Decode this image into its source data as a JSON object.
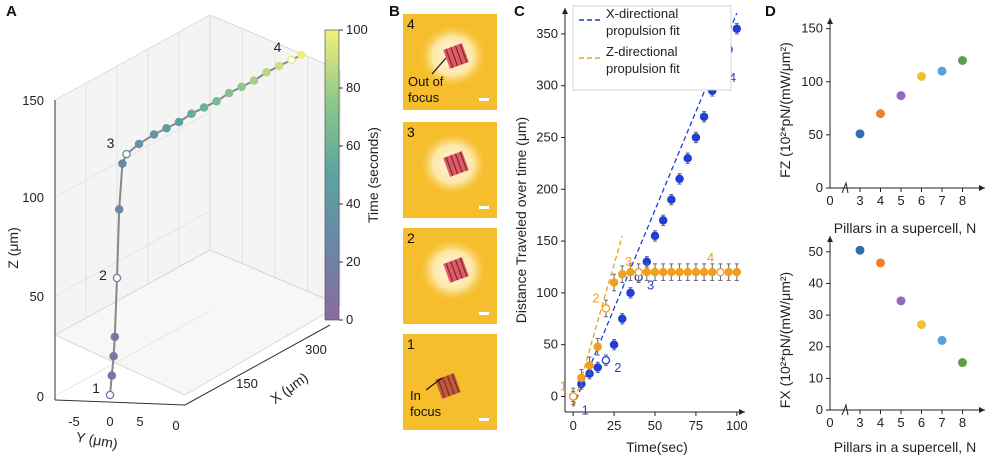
{
  "panels": {
    "a": "A",
    "b": "B",
    "c": "C",
    "d": "D"
  },
  "colors": {
    "blue": "#1f3fd6",
    "orange": "#f0a01e",
    "gray": "#555555"
  },
  "chart_data": [
    {
      "id": "A",
      "type": "scatter",
      "description_axes": "3D trajectory",
      "xlabel": "X (μm)",
      "ylabel": "Y (μm)",
      "zlabel": "Z (μm)",
      "colorbar_label": "Time (seconds)",
      "colorbar_ticks": [
        "0",
        "20",
        "40",
        "60",
        "80",
        "100"
      ],
      "z_ticks": [
        "0",
        "50",
        "100",
        "150"
      ],
      "x_ticks": [
        "0",
        "150",
        "300"
      ],
      "y_ticks": [
        "-5",
        "0",
        "5"
      ],
      "markers": [
        "1",
        "2",
        "3",
        "4"
      ],
      "points": [
        {
          "t": 0,
          "x": 0,
          "y": 0,
          "z": 0
        },
        {
          "t": 4,
          "x": 0,
          "y": 0.3,
          "z": 10
        },
        {
          "t": 8,
          "x": 0,
          "y": 0.6,
          "z": 20
        },
        {
          "t": 12,
          "x": 0,
          "y": 0.8,
          "z": 30
        },
        {
          "t": 20,
          "x": 2,
          "y": 1,
          "z": 60
        },
        {
          "t": 24,
          "x": 4,
          "y": 1.2,
          "z": 95
        },
        {
          "t": 28,
          "x": 8,
          "y": 1.4,
          "z": 118
        },
        {
          "t": 30,
          "x": 15,
          "y": 1.5,
          "z": 122
        },
        {
          "t": 35,
          "x": 40,
          "y": 1.5,
          "z": 124
        },
        {
          "t": 40,
          "x": 70,
          "y": 1.5,
          "z": 125
        },
        {
          "t": 45,
          "x": 95,
          "y": 1.5,
          "z": 125
        },
        {
          "t": 50,
          "x": 120,
          "y": 1.5,
          "z": 125
        },
        {
          "t": 55,
          "x": 145,
          "y": 1.5,
          "z": 126
        },
        {
          "t": 60,
          "x": 170,
          "y": 1.5,
          "z": 126
        },
        {
          "t": 65,
          "x": 195,
          "y": 1.5,
          "z": 126
        },
        {
          "t": 70,
          "x": 220,
          "y": 1.5,
          "z": 127
        },
        {
          "t": 75,
          "x": 245,
          "y": 1.5,
          "z": 127
        },
        {
          "t": 80,
          "x": 270,
          "y": 1.5,
          "z": 127
        },
        {
          "t": 85,
          "x": 295,
          "y": 1.5,
          "z": 128
        },
        {
          "t": 90,
          "x": 320,
          "y": 1.5,
          "z": 128
        },
        {
          "t": 95,
          "x": 345,
          "y": 1.5,
          "z": 128
        },
        {
          "t": 100,
          "x": 365,
          "y": 1.5,
          "z": 128
        }
      ]
    },
    {
      "id": "C",
      "type": "scatter",
      "xlabel": "Time(sec)",
      "ylabel": "Distance Traveled over time (μm)",
      "xlim": [
        -5,
        105
      ],
      "ylim": [
        -15,
        375
      ],
      "x_ticks": [
        0,
        25,
        50,
        75,
        100
      ],
      "y_ticks": [
        0,
        50,
        100,
        150,
        200,
        250,
        300,
        350
      ],
      "legend": [
        "X-directional propulsion fit",
        "Z-directional propulsion fit"
      ],
      "marker_labels_blue": [
        "1",
        "2",
        "3",
        "4"
      ],
      "marker_labels_orange": [
        "1",
        "2",
        "3",
        "4"
      ],
      "series": [
        {
          "name": "X",
          "color": "blue",
          "x": [
            0,
            5,
            10,
            15,
            20,
            25,
            30,
            35,
            40,
            45,
            50,
            55,
            60,
            65,
            70,
            75,
            80,
            85,
            90,
            95,
            100
          ],
          "y": [
            0,
            12,
            22,
            28,
            35,
            50,
            75,
            100,
            115,
            130,
            155,
            170,
            190,
            210,
            230,
            250,
            270,
            295,
            315,
            335,
            355
          ],
          "err": 5
        },
        {
          "name": "Z",
          "color": "orange",
          "x": [
            0,
            5,
            10,
            15,
            20,
            25,
            30,
            35,
            40,
            45,
            50,
            55,
            60,
            65,
            70,
            75,
            80,
            85,
            90,
            95,
            100
          ],
          "y": [
            0,
            18,
            30,
            48,
            85,
            110,
            118,
            120,
            120,
            120,
            120,
            120,
            120,
            120,
            120,
            120,
            120,
            120,
            120,
            120,
            120
          ],
          "err": 8
        }
      ],
      "fit_lines": [
        {
          "name": "X fit",
          "color": "blue",
          "x": [
            0,
            100
          ],
          "y": [
            -10,
            370
          ]
        },
        {
          "name": "Z fit",
          "color": "orange",
          "x": [
            0,
            30
          ],
          "y": [
            -10,
            155
          ]
        }
      ],
      "hollow_blue": [
        0,
        4,
        8,
        18
      ],
      "hollow_orange": [
        0,
        4,
        8,
        18
      ]
    },
    {
      "id": "D-top",
      "type": "scatter",
      "xlabel": "Pillars in a supercell, N",
      "ylabel": "FZ (10²*pN/(mW/μm²)",
      "x_ticks": [
        "0",
        "3",
        "4",
        "5",
        "6",
        "7",
        "8"
      ],
      "y_ticks": [
        "0",
        "50",
        "100",
        "150"
      ],
      "ylim": [
        0,
        160
      ],
      "points": [
        {
          "x": 3,
          "y": 51,
          "color": "#2f6fb0"
        },
        {
          "x": 4,
          "y": 70,
          "color": "#f07f2a"
        },
        {
          "x": 5,
          "y": 87,
          "color": "#9467bd"
        },
        {
          "x": 6,
          "y": 105,
          "color": "#f2c12e"
        },
        {
          "x": 7,
          "y": 110,
          "color": "#5aa0e0"
        },
        {
          "x": 8,
          "y": 120,
          "color": "#5aa04a"
        }
      ]
    },
    {
      "id": "D-bottom",
      "type": "scatter",
      "xlabel": "Pillars in a supercell, N",
      "ylabel": "FX (10²*pN/(mW/μm²)",
      "x_ticks": [
        "0",
        "3",
        "4",
        "5",
        "6",
        "7",
        "8"
      ],
      "y_ticks": [
        "0",
        "10",
        "20",
        "30",
        "40",
        "50"
      ],
      "ylim": [
        0,
        55
      ],
      "points": [
        {
          "x": 3,
          "y": 50.5,
          "color": "#2f6fb0"
        },
        {
          "x": 4,
          "y": 46.5,
          "color": "#f07f2a"
        },
        {
          "x": 5,
          "y": 34.5,
          "color": "#9467bd"
        },
        {
          "x": 6,
          "y": 27,
          "color": "#f2c12e"
        },
        {
          "x": 7,
          "y": 22,
          "color": "#5aa0e0"
        },
        {
          "x": 8,
          "y": 15,
          "color": "#5aa04a"
        }
      ]
    }
  ],
  "panel_b": {
    "frames": [
      {
        "num": "4",
        "note": "Out of focus"
      },
      {
        "num": "3",
        "note": ""
      },
      {
        "num": "2",
        "note": ""
      },
      {
        "num": "1",
        "note": "In focus"
      }
    ],
    "note_lines": {
      "out": [
        "Out of",
        "focus"
      ],
      "in": [
        "In",
        "focus"
      ]
    }
  }
}
